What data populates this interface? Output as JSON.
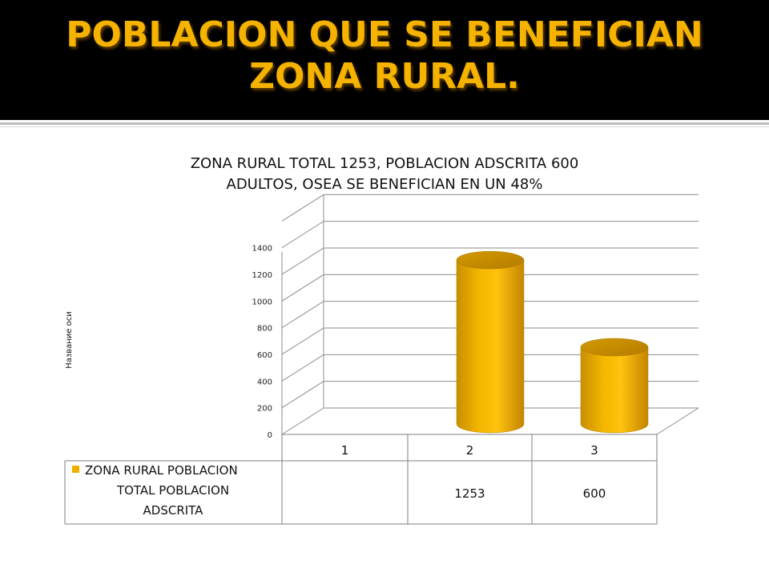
{
  "slide": {
    "title_lines": [
      "POBLACION QUE SE BENEFICIAN",
      "ZONA RURAL."
    ]
  },
  "colors": {
    "title_bg": "#000000",
    "title_text": "#f5b300",
    "bar": "#f0b000",
    "bar_dark": "#c88a00",
    "grid": "#8c8c8c"
  },
  "chart_data": {
    "type": "bar",
    "style": "3d-cylinder",
    "title_lines": [
      "ZONA RURAL TOTAL 1253,  POBLACION ADSCRITA 600",
      "ADULTOS, OSEA SE BENEFICIAN EN UN 48%"
    ],
    "ylabel": "Название оси",
    "xlabel": "",
    "ylim": [
      0,
      1400
    ],
    "yticks": [
      "0",
      "200",
      "400",
      "600",
      "800",
      "1000",
      "1200",
      "1400"
    ],
    "categories": [
      "1",
      "2",
      "3"
    ],
    "series": [
      {
        "name": "ZONA RURAL POBLACION TOTAL POBLACION ADSCRITA",
        "name_lines": [
          "ZONA RURAL POBLACION",
          "TOTAL POBLACION",
          "ADSCRITA"
        ],
        "values": [
          null,
          1253,
          600
        ],
        "value_labels": [
          "",
          "1253",
          "600"
        ]
      }
    ],
    "legend": "data-table",
    "grid": true
  }
}
